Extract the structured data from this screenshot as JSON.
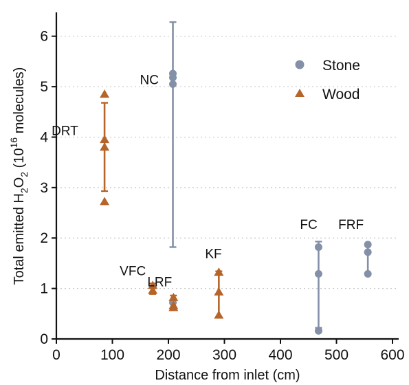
{
  "chart_data": {
    "type": "scatter",
    "xlabel": "Distance from inlet (cm)",
    "ylabel_parts": {
      "a": "Total emitted H",
      "b": "2",
      "c": "O",
      "d": "2",
      "e": " (10",
      "f": "16",
      "g": " molecules)"
    },
    "xlim": [
      0,
      600
    ],
    "ylim": [
      0,
      6.5
    ],
    "xticks": [
      0,
      100,
      200,
      300,
      400,
      500,
      600
    ],
    "yticks": [
      0,
      1,
      2,
      3,
      4,
      5,
      6
    ],
    "grid": "horizontal dotted",
    "legend_position": "top-right",
    "colors": {
      "stone": "#8490a8",
      "wood": "#b5652a"
    },
    "series": [
      {
        "name": "Stone",
        "marker": "circle",
        "groups": [
          {
            "label": "NC",
            "x": 208,
            "points": [
              5.26,
              5.18,
              5.05
            ],
            "err": [
              1.82,
              6.28
            ]
          },
          {
            "label": "",
            "x": 208,
            "points": [
              0.72
            ],
            "err": null
          },
          {
            "label": "FC",
            "x": 468,
            "points": [
              1.82,
              1.29,
              0.16
            ],
            "err": [
              0.22,
              1.93
            ]
          },
          {
            "label": "FRF",
            "x": 556,
            "points": [
              1.87,
              1.72,
              1.29
            ],
            "err": [
              1.29,
              1.89
            ]
          }
        ]
      },
      {
        "name": "Wood",
        "marker": "triangle",
        "groups": [
          {
            "label": "DRT",
            "x": 86,
            "points": [
              4.85,
              3.95,
              3.8,
              2.72
            ],
            "err": [
              2.93,
              4.68
            ]
          },
          {
            "label": "VFC",
            "x": 172,
            "points": [
              1.06,
              0.96
            ],
            "err": [
              0.89,
              1.1
            ]
          },
          {
            "label": "LRF",
            "x": 209,
            "points": [
              0.82,
              0.66,
              0.62
            ],
            "err": [
              0.58,
              0.86
            ]
          },
          {
            "label": "KF",
            "x": 290,
            "points": [
              1.32,
              0.93,
              0.47
            ],
            "err": [
              0.43,
              1.34
            ]
          }
        ]
      }
    ]
  }
}
